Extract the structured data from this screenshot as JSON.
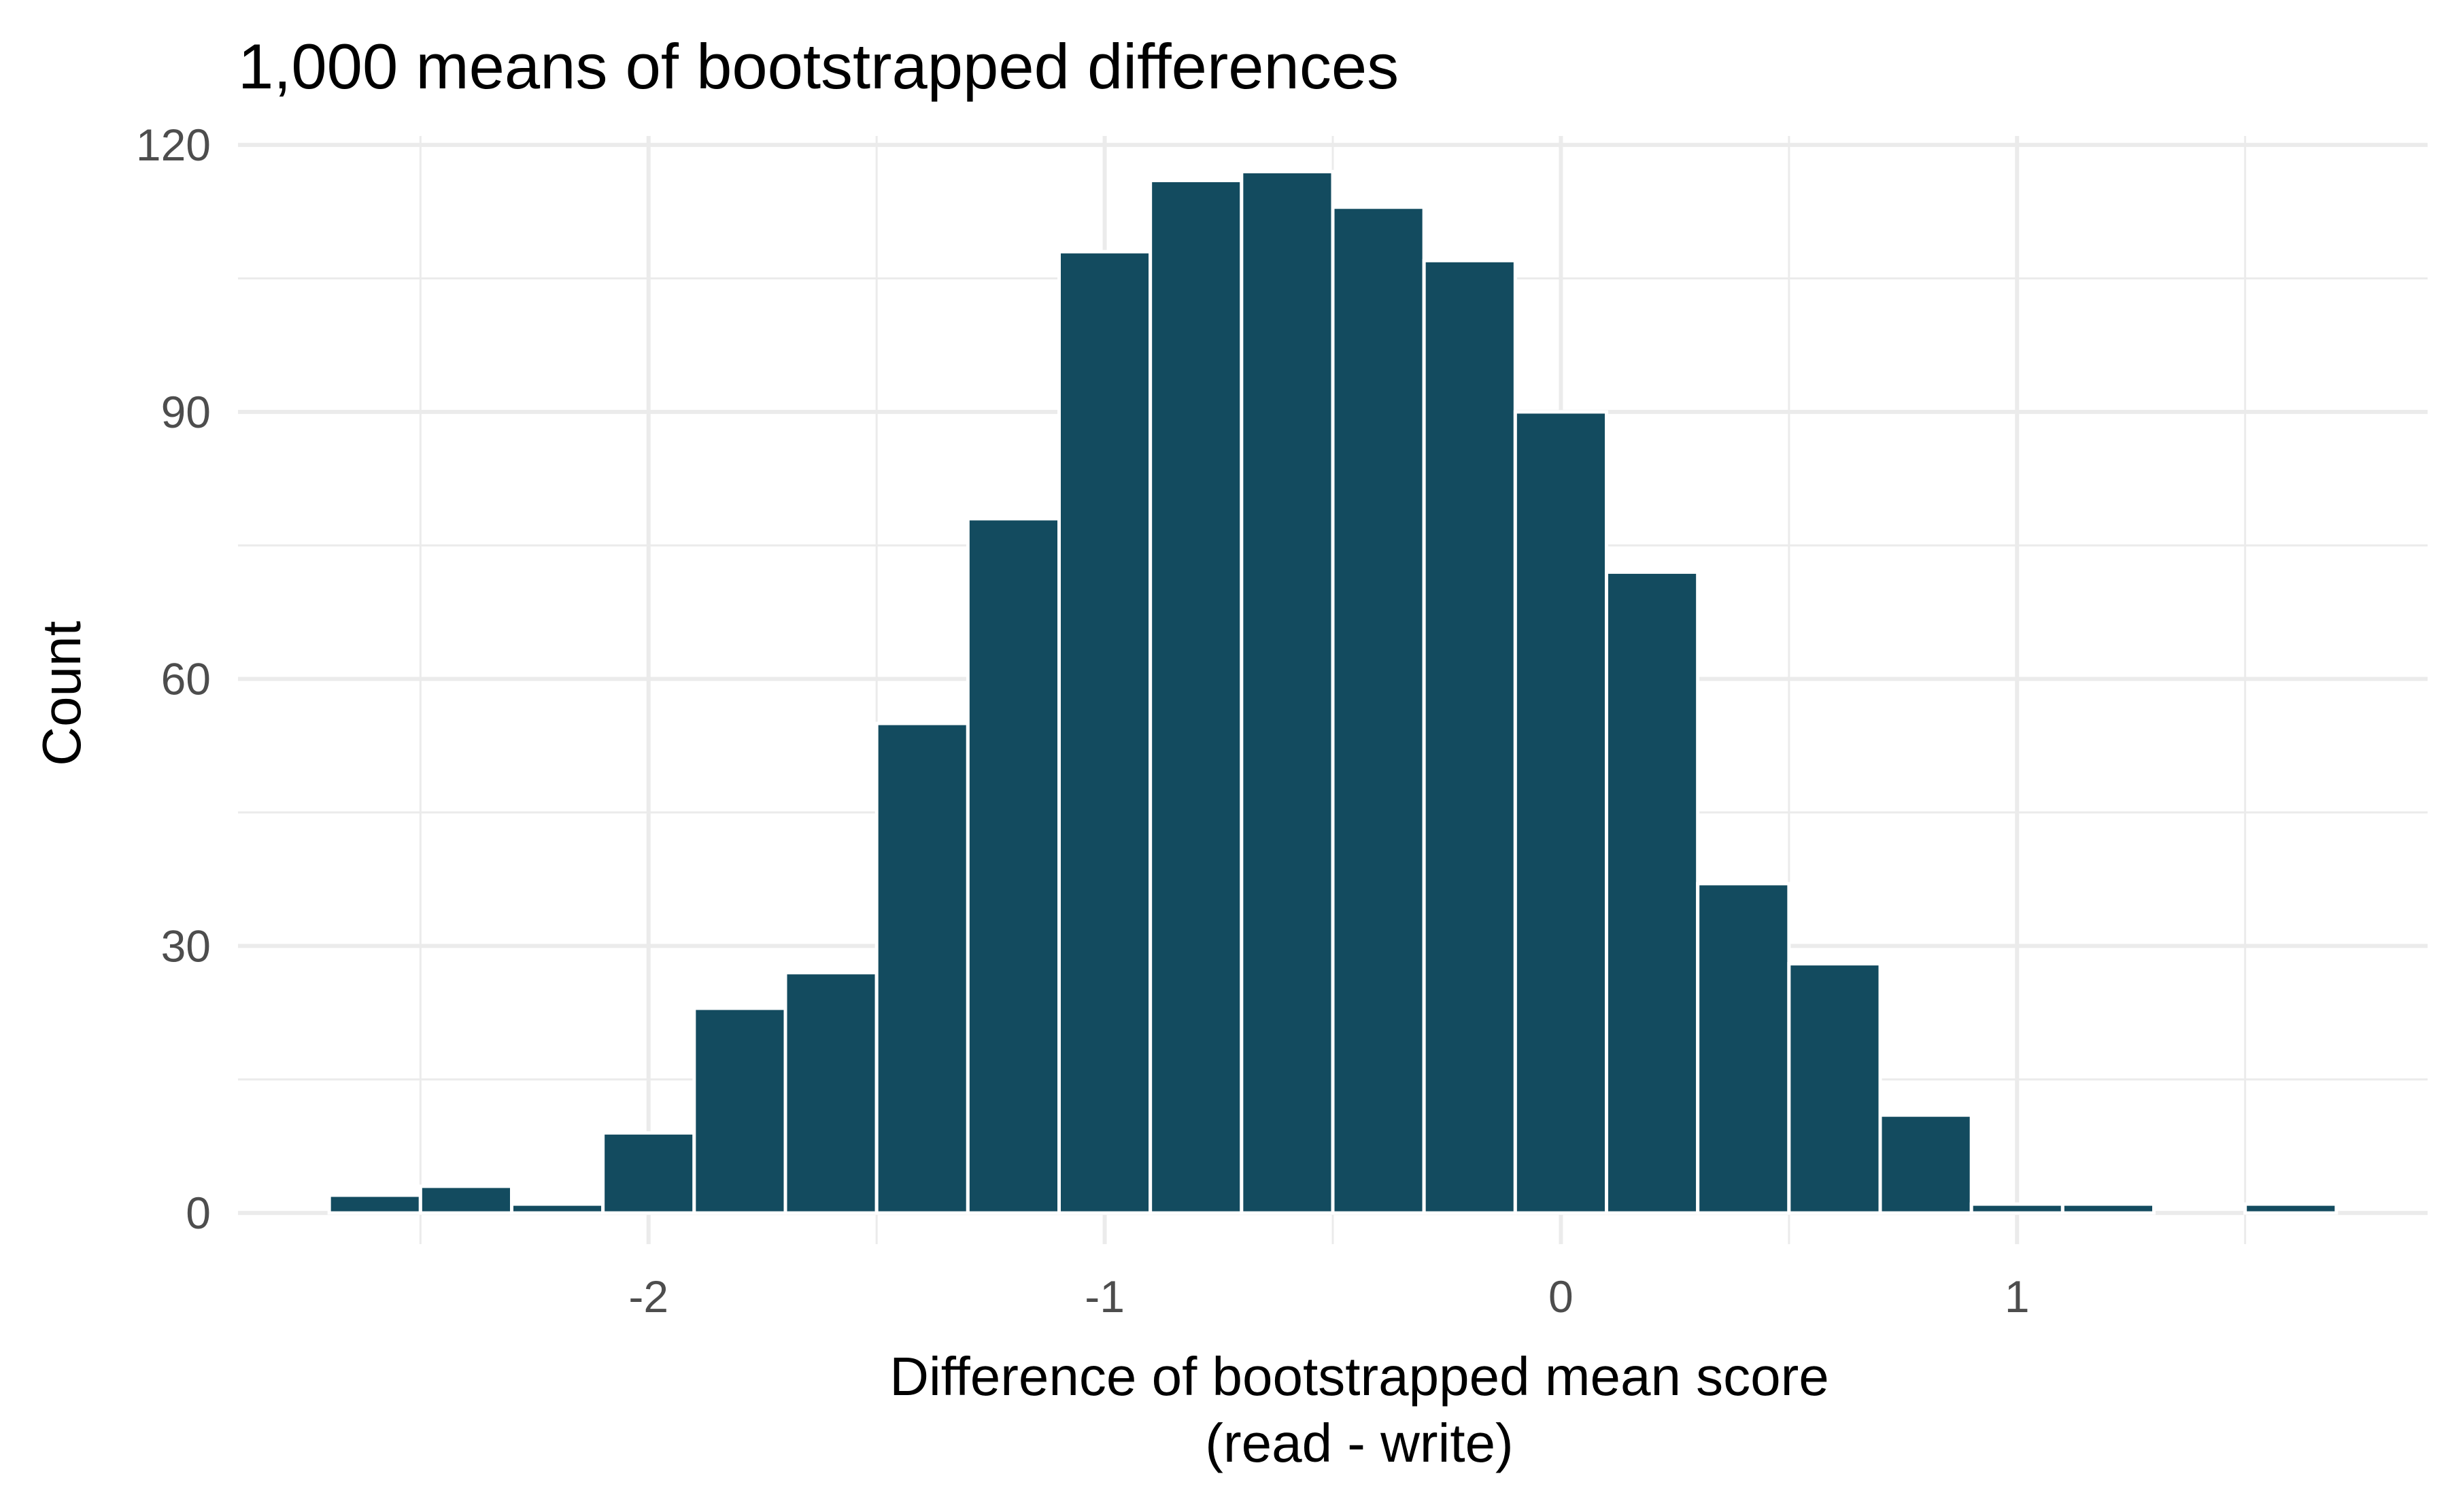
{
  "colors": {
    "bar_fill": "#134b5f",
    "bar_outline": "#ffffff",
    "grid": "#ebebeb",
    "tick_text": "#4d4d4d",
    "background": "#ffffff"
  },
  "chart_data": {
    "type": "bar",
    "title": "1,000 means of bootstrapped differences",
    "xlabel_line1": "Difference of bootstrapped mean score",
    "xlabel_line2": "(read - write)",
    "ylabel": "Count",
    "xlim": [
      -2.9,
      1.9
    ],
    "ylim": [
      -3.5,
      121
    ],
    "bin_width": 0.2,
    "x_ticks": [
      -2,
      -1,
      0,
      1
    ],
    "x_tick_labels": [
      "-2",
      "-1",
      "0",
      "1"
    ],
    "x_minor_ticks": [
      -2.5,
      -1.5,
      -0.5,
      0.5,
      1.5
    ],
    "y_ticks": [
      0,
      30,
      60,
      90,
      120
    ],
    "y_tick_labels": [
      "0",
      "30",
      "60",
      "90",
      "120"
    ],
    "y_minor_ticks": [
      15,
      45,
      75,
      105
    ],
    "grid": true,
    "bins": [
      {
        "x": -2.6,
        "count": 2
      },
      {
        "x": -2.4,
        "count": 3
      },
      {
        "x": -2.2,
        "count": 1
      },
      {
        "x": -2.0,
        "count": 9
      },
      {
        "x": -1.8,
        "count": 23
      },
      {
        "x": -1.6,
        "count": 27
      },
      {
        "x": -1.4,
        "count": 55
      },
      {
        "x": -1.2,
        "count": 78
      },
      {
        "x": -1.0,
        "count": 108
      },
      {
        "x": -0.8,
        "count": 116
      },
      {
        "x": -0.6,
        "count": 117
      },
      {
        "x": -0.4,
        "count": 113
      },
      {
        "x": -0.2,
        "count": 107
      },
      {
        "x": 0.0,
        "count": 90
      },
      {
        "x": 0.2,
        "count": 72
      },
      {
        "x": 0.4,
        "count": 37
      },
      {
        "x": 0.6,
        "count": 28
      },
      {
        "x": 0.8,
        "count": 11
      },
      {
        "x": 1.0,
        "count": 1
      },
      {
        "x": 1.2,
        "count": 1
      },
      {
        "x": 1.4,
        "count": 0
      },
      {
        "x": 1.6,
        "count": 1
      }
    ]
  }
}
